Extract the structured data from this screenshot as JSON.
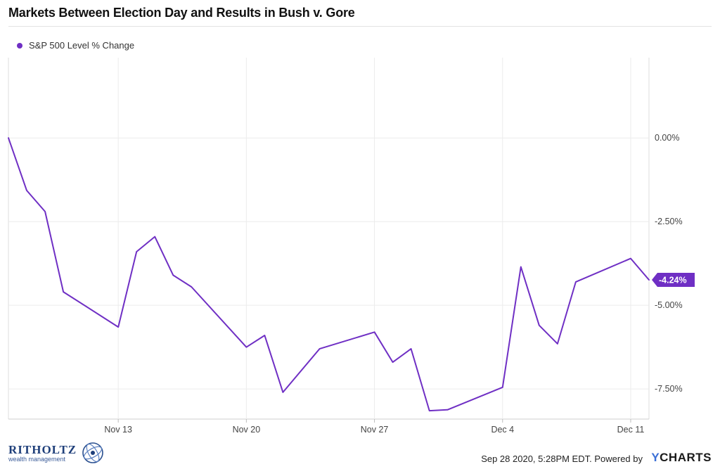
{
  "title": "Markets Between Election Day and Results in Bush v. Gore",
  "legend": {
    "label": "S&P 500 Level % Change",
    "color": "#6f2fc4"
  },
  "chart_data": {
    "type": "line",
    "title": "Markets Between Election Day and Results in Bush v. Gore",
    "xlabel": "",
    "ylabel": "",
    "x_ticks": [
      "Nov 13",
      "Nov 20",
      "Nov 27",
      "Dec 4",
      "Dec 11"
    ],
    "y_ticks": [
      "0.00%",
      "-2.50%",
      "-5.00%",
      "-7.50%"
    ],
    "ylim": [
      -8.4,
      2.4
    ],
    "xlim": [
      "2000-11-07",
      "2000-12-12"
    ],
    "grid": true,
    "legend_position": "top-left",
    "series": [
      {
        "name": "S&P 500 Level % Change",
        "color": "#6f2fc4",
        "points": [
          [
            "2000-11-07",
            0.0
          ],
          [
            "2000-11-08",
            -1.57
          ],
          [
            "2000-11-09",
            -2.2
          ],
          [
            "2000-11-10",
            -4.6
          ],
          [
            "2000-11-13",
            -5.65
          ],
          [
            "2000-11-14",
            -3.4
          ],
          [
            "2000-11-15",
            -2.95
          ],
          [
            "2000-11-16",
            -4.1
          ],
          [
            "2000-11-17",
            -4.45
          ],
          [
            "2000-11-20",
            -6.25
          ],
          [
            "2000-11-21",
            -5.9
          ],
          [
            "2000-11-22",
            -7.6
          ],
          [
            "2000-11-24",
            -6.3
          ],
          [
            "2000-11-27",
            -5.8
          ],
          [
            "2000-11-28",
            -6.7
          ],
          [
            "2000-11-29",
            -6.3
          ],
          [
            "2000-11-30",
            -8.15
          ],
          [
            "2000-12-01",
            -8.12
          ],
          [
            "2000-12-04",
            -7.45
          ],
          [
            "2000-12-05",
            -3.85
          ],
          [
            "2000-12-06",
            -5.6
          ],
          [
            "2000-12-07",
            -6.15
          ],
          [
            "2000-12-08",
            -4.3
          ],
          [
            "2000-12-11",
            -3.6
          ],
          [
            "2000-12-12",
            -4.24
          ]
        ]
      }
    ],
    "last_value_label": "-4.24%"
  },
  "footer": {
    "timestamp": "Sep 28 2020, 5:28PM EDT. Powered by",
    "brand_y": "Y",
    "brand_rest": "CHARTS",
    "logo_name": "RITHOLTZ",
    "logo_sub": "wealth management"
  }
}
